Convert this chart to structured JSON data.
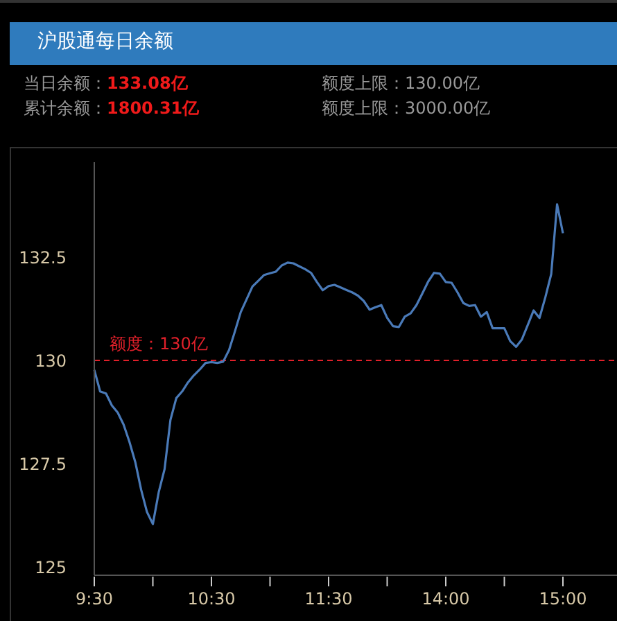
{
  "chart_data": {
    "type": "line",
    "title": "沪股通每日余额",
    "annotations": [
      "当日余额：133.08亿",
      "累计余额：1800.31亿",
      "额度上限：130.00亿",
      "额度上限：3000.00亿"
    ],
    "categories": [
      "9:30",
      null,
      null,
      null,
      null,
      null,
      null,
      null,
      null,
      null,
      null,
      null,
      null,
      null,
      null,
      null,
      null,
      null,
      null,
      null,
      "10:30",
      null,
      null,
      null,
      null,
      null,
      null,
      null,
      null,
      null,
      null,
      null,
      null,
      null,
      null,
      null,
      null,
      null,
      null,
      null,
      "11:30",
      null,
      null,
      null,
      null,
      null,
      null,
      null,
      null,
      null,
      null,
      null,
      null,
      null,
      null,
      null,
      null,
      null,
      null,
      null,
      "14:00",
      null,
      null,
      null,
      null,
      null,
      null,
      null,
      null,
      null,
      null,
      null,
      null,
      null,
      null,
      null,
      null,
      null,
      null,
      null,
      "15:00"
    ],
    "series": [
      {
        "color": "#4a7ab8",
        "values": [
          129.77,
          129.25,
          129.2,
          128.91,
          128.74,
          128.45,
          128.03,
          127.54,
          126.87,
          126.33,
          126.04,
          126.81,
          127.37,
          128.56,
          129.09,
          129.25,
          129.47,
          129.64,
          129.78,
          129.94,
          129.96,
          129.94,
          129.97,
          130.25,
          130.7,
          131.17,
          131.48,
          131.79,
          131.93,
          132.07,
          132.11,
          132.15,
          132.3,
          132.37,
          132.35,
          132.28,
          132.21,
          132.12,
          131.9,
          131.7,
          131.8,
          131.83,
          131.77,
          131.71,
          131.65,
          131.57,
          131.44,
          131.23,
          131.29,
          131.34,
          131.03,
          130.83,
          130.81,
          131.06,
          131.14,
          131.34,
          131.62,
          131.91,
          132.12,
          132.1,
          131.9,
          131.88,
          131.65,
          131.39,
          131.32,
          131.34,
          131.06,
          131.17,
          130.78,
          130.78,
          130.78,
          130.47,
          130.33,
          130.51,
          130.86,
          131.21,
          131.03,
          131.53,
          132.09,
          133.78,
          133.08
        ]
      }
    ],
    "ylim": [
      124.8,
      134.8
    ],
    "yticks": [
      125,
      127.5,
      130,
      132.5
    ],
    "ref_lines": [
      {
        "axis": "y",
        "value": 130,
        "label": "额度：130亿",
        "color": "#e0202a",
        "line_style": "dashed"
      }
    ],
    "grid": false,
    "legend": false,
    "marker": "none",
    "line_style": "solid"
  }
}
